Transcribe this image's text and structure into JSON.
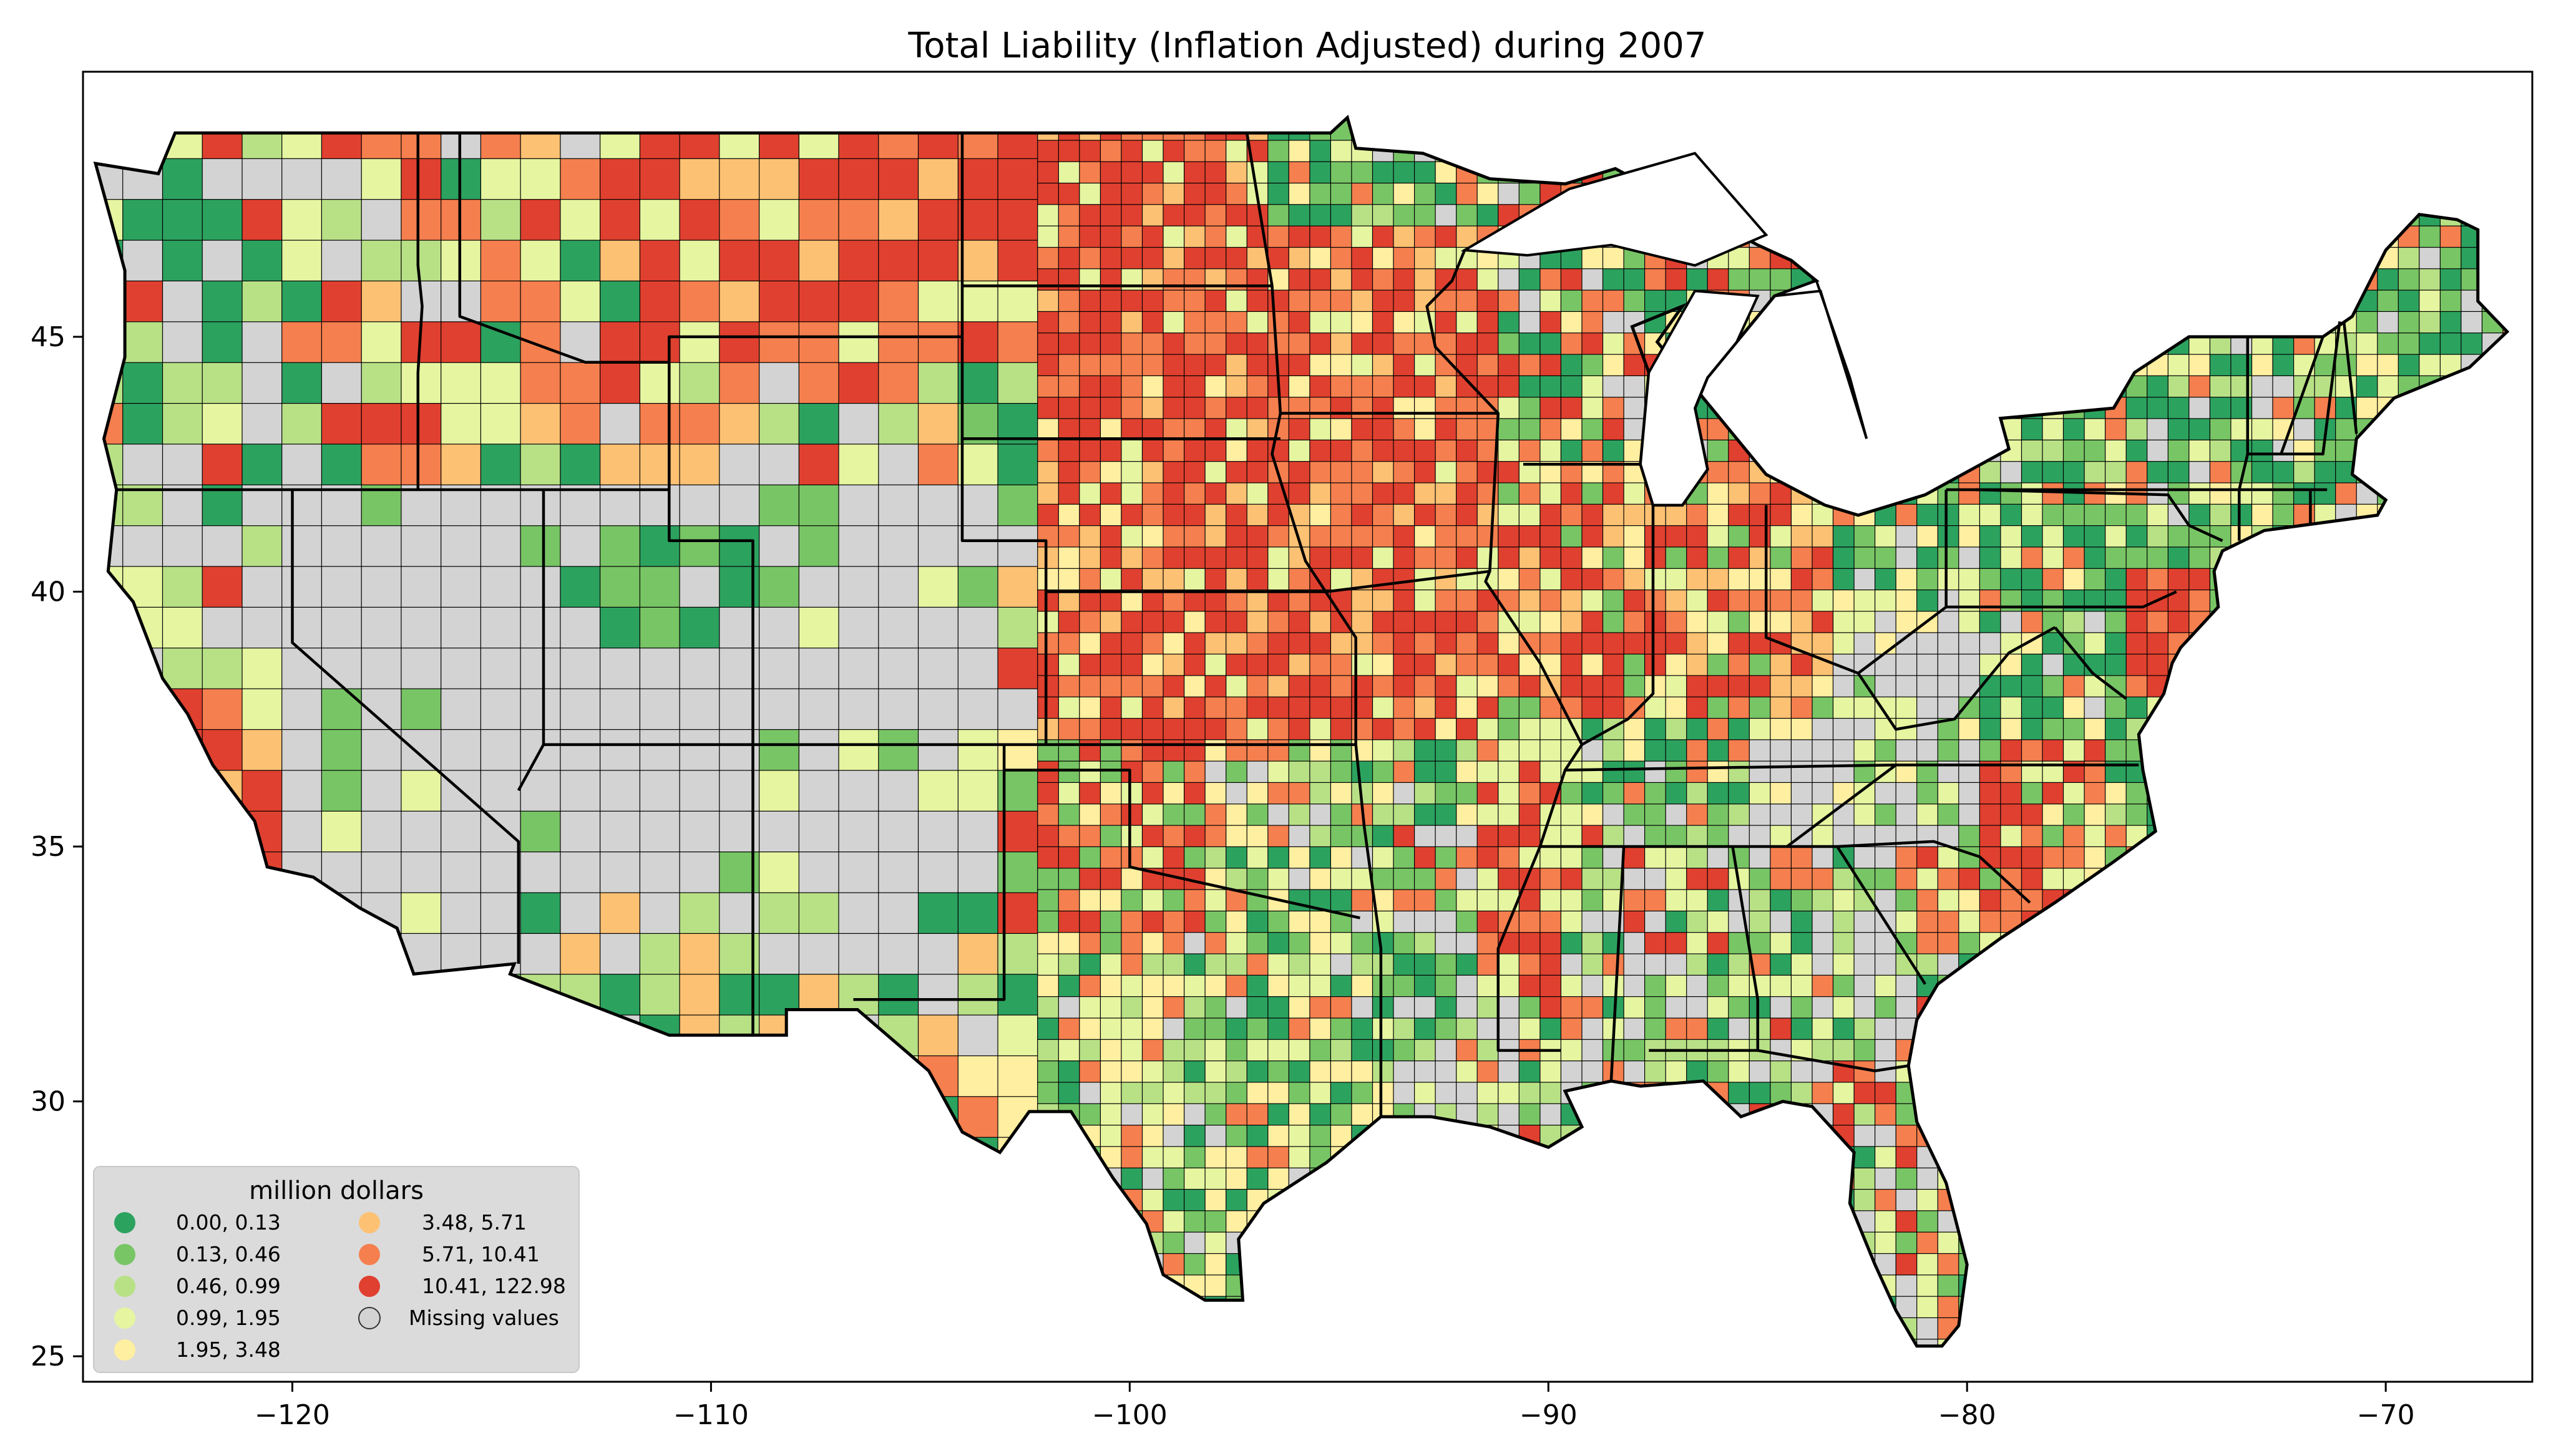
{
  "title": "Total Liability  (Inflation Adjusted) during 2007",
  "colors": {
    "missing": "#d3d3d3",
    "border": "#000000",
    "legend_bg": "#d9d9d9"
  },
  "chart_data": {
    "type": "choropleth",
    "title": "Total Liability  (Inflation Adjusted) during 2007",
    "xlim": [
      -125,
      -66.5
    ],
    "ylim": [
      24.5,
      50.2
    ],
    "x_ticks": [
      {
        "value": -120,
        "label": "−120"
      },
      {
        "value": -110,
        "label": "−110"
      },
      {
        "value": -100,
        "label": "−100"
      },
      {
        "value": -90,
        "label": "−90"
      },
      {
        "value": -80,
        "label": "−80"
      },
      {
        "value": -70,
        "label": "−70"
      }
    ],
    "y_ticks": [
      {
        "value": 25,
        "label": "25"
      },
      {
        "value": 30,
        "label": "30"
      },
      {
        "value": 35,
        "label": "35"
      },
      {
        "value": 40,
        "label": "40"
      },
      {
        "value": 45,
        "label": "45"
      }
    ],
    "legend": {
      "title": "million dollars",
      "placement": "lower-left",
      "entries": [
        {
          "label": "0.00,   0.13",
          "color": "#2ca25f"
        },
        {
          "label": "0.13,   0.46",
          "color": "#78c565"
        },
        {
          "label": "0.46,   0.99",
          "color": "#b8e186"
        },
        {
          "label": "0.99,   1.95",
          "color": "#e6f5a0"
        },
        {
          "label": "1.95,   3.48",
          "color": "#ffefa0"
        },
        {
          "label": "3.48,   5.71",
          "color": "#fdc173"
        },
        {
          "label": "5.71,  10.41",
          "color": "#f57f4e"
        },
        {
          "label": "10.41, 122.98",
          "color": "#e0402f"
        },
        {
          "label": "Missing values",
          "color": "#d3d3d3"
        }
      ]
    }
  }
}
